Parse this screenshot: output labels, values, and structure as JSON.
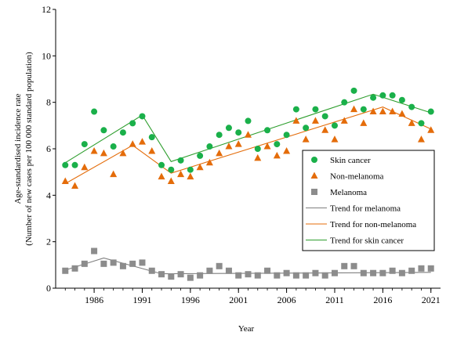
{
  "chart_data": {
    "type": "scatter",
    "title": "",
    "xlabel": "Year",
    "ylabel_line1": "Age-standardised incidence rate",
    "ylabel_line2": "(Number of new cases per 100 000 standard population)",
    "xlim": [
      1982,
      2022
    ],
    "ylim": [
      0,
      12
    ],
    "xticks": [
      1986,
      1991,
      1996,
      2001,
      2006,
      2011,
      2016,
      2021
    ],
    "yticks": [
      0,
      2,
      4,
      6,
      8,
      10,
      12
    ],
    "grid": false,
    "legend_position": "right",
    "x": [
      1983,
      1984,
      1985,
      1986,
      1987,
      1988,
      1989,
      1990,
      1991,
      1992,
      1993,
      1994,
      1995,
      1996,
      1997,
      1998,
      1999,
      2000,
      2001,
      2002,
      2003,
      2004,
      2005,
      2006,
      2007,
      2008,
      2009,
      2010,
      2011,
      2012,
      2013,
      2014,
      2015,
      2016,
      2017,
      2018,
      2019,
      2020,
      2021
    ],
    "series": [
      {
        "name": "Skin cancer",
        "marker": "circle",
        "color": "#1ab04a",
        "values": [
          5.3,
          5.3,
          6.2,
          7.6,
          6.8,
          6.1,
          6.7,
          7.1,
          7.4,
          6.5,
          5.3,
          5.1,
          5.5,
          5.1,
          5.7,
          6.1,
          6.6,
          6.9,
          6.7,
          7.2,
          6.0,
          6.8,
          6.2,
          6.6,
          7.7,
          6.9,
          7.7,
          7.4,
          7.0,
          8.0,
          8.5,
          7.7,
          8.2,
          8.3,
          8.3,
          8.1,
          7.8,
          7.1,
          7.6
        ]
      },
      {
        "name": "Non-melanoma",
        "marker": "triangle",
        "color": "#e46c0a",
        "values": [
          4.6,
          4.4,
          5.2,
          5.9,
          5.8,
          4.9,
          5.8,
          6.2,
          6.3,
          5.9,
          4.8,
          4.6,
          4.9,
          4.8,
          5.2,
          5.4,
          5.8,
          6.1,
          6.2,
          6.6,
          5.6,
          6.1,
          5.7,
          5.9,
          7.2,
          6.4,
          7.2,
          6.8,
          6.4,
          7.2,
          7.7,
          7.1,
          7.6,
          7.6,
          7.6,
          7.5,
          7.1,
          6.4,
          6.8
        ]
      },
      {
        "name": "Melanoma",
        "marker": "square",
        "color": "#8c8c8c",
        "values": [
          0.75,
          0.85,
          1.05,
          1.6,
          1.05,
          1.1,
          0.95,
          1.05,
          1.1,
          0.75,
          0.6,
          0.5,
          0.6,
          0.45,
          0.55,
          0.75,
          0.95,
          0.75,
          0.55,
          0.6,
          0.55,
          0.75,
          0.55,
          0.65,
          0.55,
          0.55,
          0.65,
          0.55,
          0.65,
          0.95,
          0.95,
          0.65,
          0.65,
          0.65,
          0.75,
          0.65,
          0.75,
          0.85,
          0.85
        ]
      },
      {
        "name": "Trend for melanoma",
        "marker": "line",
        "color": "#7f7f7f",
        "points": [
          [
            1983,
            0.78
          ],
          [
            1987,
            1.3
          ],
          [
            1993,
            0.62
          ],
          [
            2021,
            0.68
          ]
        ]
      },
      {
        "name": "Trend for non-melanoma",
        "marker": "line",
        "color": "#e46c0a",
        "points": [
          [
            1983,
            4.5
          ],
          [
            1990,
            6.15
          ],
          [
            1994,
            4.95
          ],
          [
            2016,
            7.8
          ],
          [
            2021,
            6.85
          ]
        ]
      },
      {
        "name": "Trend for skin cancer",
        "marker": "line",
        "color": "#2e9e2e",
        "points": [
          [
            1983,
            5.4
          ],
          [
            1991,
            7.45
          ],
          [
            1994,
            5.45
          ],
          [
            2015,
            8.35
          ],
          [
            2021,
            7.55
          ]
        ]
      }
    ]
  }
}
